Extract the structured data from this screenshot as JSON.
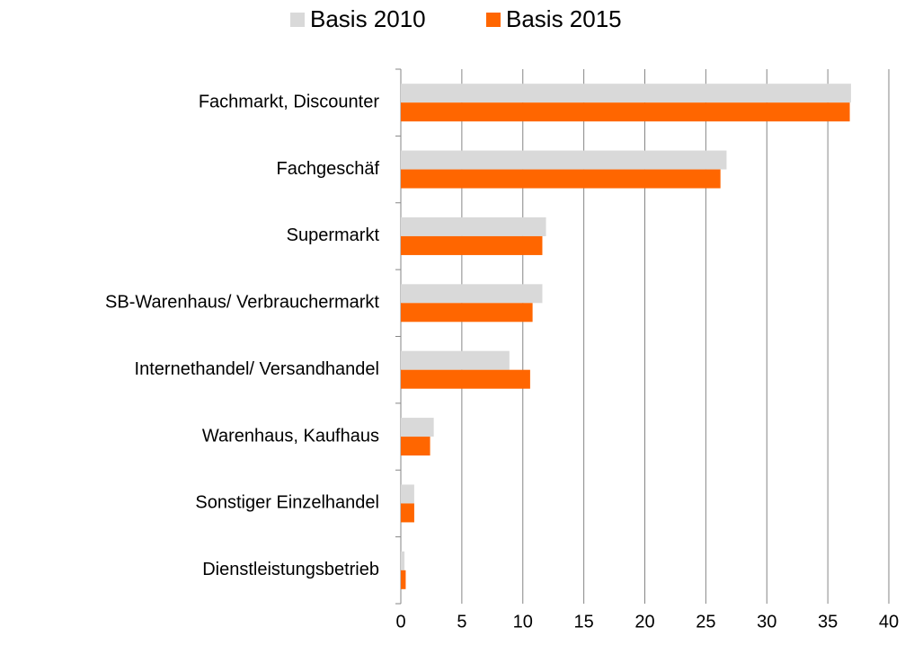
{
  "chart_data": {
    "type": "hbar",
    "categories": [
      "Fachmarkt, Discounter",
      "Fachgeschäf",
      "Supermarkt",
      "SB-Warenhaus/ Verbrauchermarkt",
      "Internethandel/ Versandhandel",
      "Warenhaus, Kaufhaus",
      "Sonstiger Einzelhandel",
      "Dienstleistungsbetrieb"
    ],
    "series": [
      {
        "name": "Basis 2010",
        "color": "#d9d9d9",
        "values": [
          36.9,
          26.7,
          11.9,
          11.6,
          8.9,
          2.7,
          1.1,
          0.3
        ]
      },
      {
        "name": "Basis 2015",
        "color": "#ff6600",
        "values": [
          36.8,
          26.2,
          11.6,
          10.8,
          10.6,
          2.4,
          1.1,
          0.4
        ]
      }
    ],
    "xlim": [
      0,
      40
    ],
    "xticks": [
      0,
      5,
      10,
      15,
      20,
      25,
      30,
      35,
      40
    ],
    "grid": true,
    "legend": "top"
  }
}
